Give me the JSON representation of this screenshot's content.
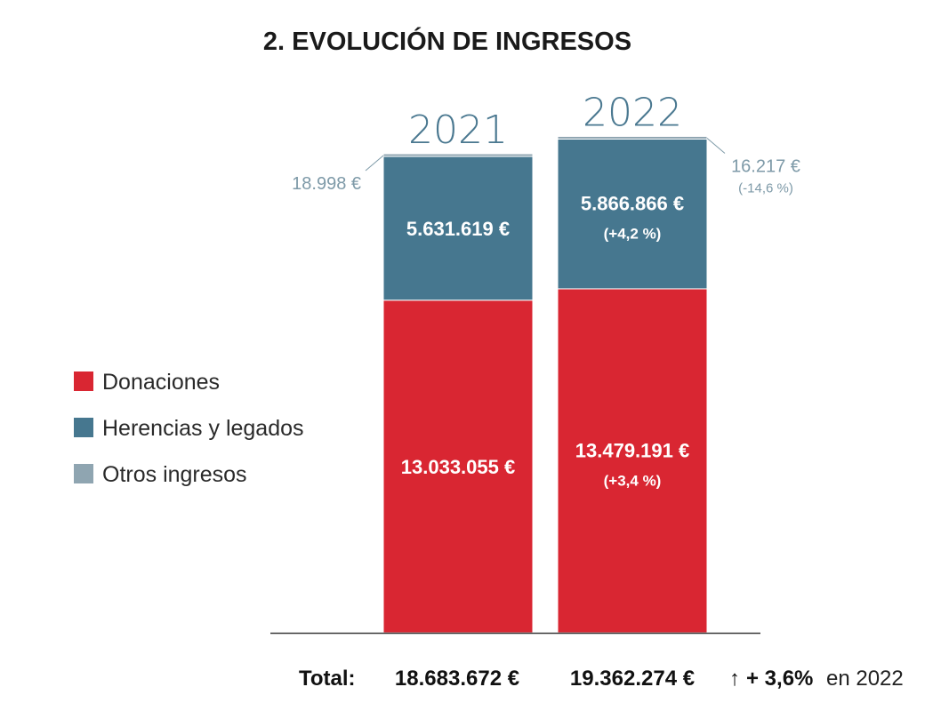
{
  "chart_data": {
    "type": "bar",
    "stacked": true,
    "title": "2. EVOLUCIÓN DE INGRESOS",
    "categories": [
      "2021",
      "2022"
    ],
    "series": [
      {
        "name": "Donaciones",
        "color": "#d92632",
        "values": [
          13033055,
          13479191
        ],
        "labels": [
          "13.033.055 €",
          "13.479.191 €"
        ],
        "changes": [
          "",
          "(+3,4 %)"
        ]
      },
      {
        "name": "Herencias y legados",
        "color": "#46778f",
        "values": [
          5631619,
          5866866
        ],
        "labels": [
          "5.631.619 €",
          "5.866.866 €"
        ],
        "changes": [
          "",
          "(+4,2 %)"
        ]
      },
      {
        "name": "Otros ingresos",
        "color": "#8fa5b1",
        "values": [
          18998,
          16217
        ],
        "labels": [
          "18.998 €",
          "16.217 €"
        ],
        "changes": [
          "",
          "(-14,6 %)"
        ]
      }
    ],
    "totals": {
      "label": "Total:",
      "values": [
        "18.683.672 €",
        "19.362.274 €"
      ],
      "growth_arrow": "↑",
      "growth_bold": "+ 3,6%",
      "growth_rest": "en 2022"
    },
    "legend_position": "left",
    "grid": false,
    "ylim": [
      0,
      19362274
    ]
  }
}
